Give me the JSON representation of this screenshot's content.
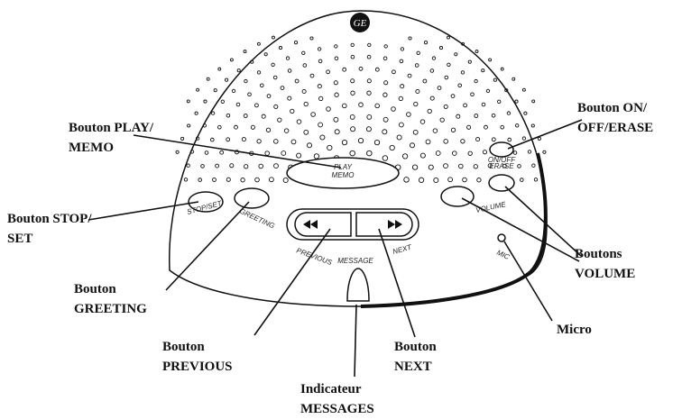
{
  "callouts": [
    {
      "lines": [
        "Bouton PLAY/",
        "MEMO"
      ]
    },
    {
      "lines": [
        "Bouton STOP/",
        "SET"
      ]
    },
    {
      "lines": [
        "Bouton",
        "GREETING"
      ]
    },
    {
      "lines": [
        "Bouton",
        "PREVIOUS"
      ]
    },
    {
      "lines": [
        "Bouton",
        "NEXT"
      ]
    },
    {
      "lines": [
        "Indicateur",
        "MESSAGES"
      ]
    },
    {
      "lines": [
        "Micro"
      ]
    },
    {
      "lines": [
        "Boutons",
        "VOLUME"
      ]
    },
    {
      "lines": [
        "Bouton ON/",
        "OFF/ERASE"
      ]
    }
  ],
  "device_labels": {
    "logo": "GE",
    "play": [
      "PLAY",
      "MEMO"
    ],
    "stop_set": "STOP/SET",
    "greeting": "GREETING",
    "previous": "PREVIOUS",
    "next": "NEXT",
    "message": "MESSAGE",
    "volume": "VOLUME",
    "on_off_erase": [
      "ON/OFF",
      "ERASE"
    ],
    "mic": "MIC"
  }
}
